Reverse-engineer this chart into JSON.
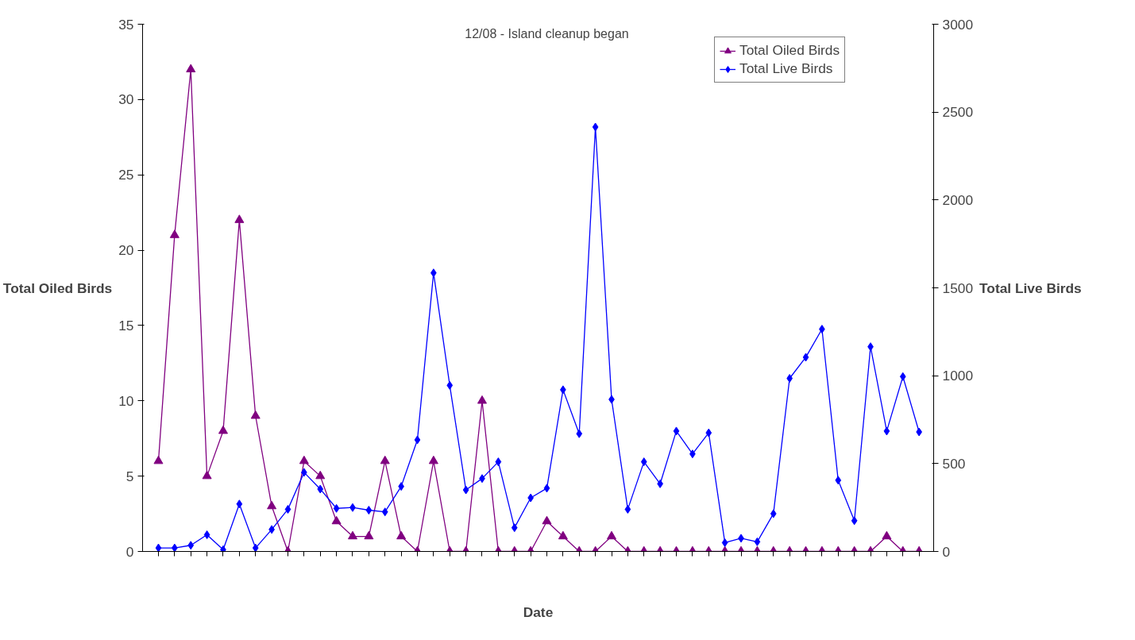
{
  "chart_data": {
    "type": "line",
    "xlabel": "Date",
    "ylabel": "Total Oiled Birds",
    "y2label": "Total Live Birds",
    "annotations": [
      "12/08 - Island cleanup began"
    ],
    "categories": [
      null,
      null,
      null,
      null,
      null,
      null,
      null,
      null,
      null,
      null,
      null,
      null,
      null,
      null,
      null,
      null,
      null,
      null,
      null,
      null,
      null,
      null,
      null,
      null,
      null,
      null,
      null,
      null,
      null,
      null,
      null,
      null,
      null,
      null,
      null,
      null,
      null,
      null,
      null,
      null,
      null,
      null,
      null,
      null,
      null,
      null,
      null,
      null
    ],
    "ylim": [
      0,
      35
    ],
    "yticks": [
      0,
      5,
      10,
      15,
      20,
      25,
      30,
      35
    ],
    "y2lim": [
      0,
      3000
    ],
    "y2ticks": [
      0,
      500,
      1000,
      1500,
      2000,
      2500,
      3000
    ],
    "legend": "top right",
    "grid": false,
    "series": [
      {
        "name": "Total Oiled Birds",
        "color": "#800080",
        "marker": "triangle",
        "values": [
          6,
          21,
          32,
          5,
          8,
          22,
          9,
          3,
          0,
          6,
          5,
          2,
          1,
          1,
          6,
          1,
          0,
          6,
          0,
          0,
          10,
          0,
          0,
          0,
          2,
          1,
          0,
          0,
          1,
          0,
          0,
          0,
          0,
          0,
          0,
          0,
          0,
          0,
          0,
          0,
          0,
          0,
          0,
          0,
          0,
          1,
          0,
          0
        ]
      },
      {
        "name": "Total Live Birds",
        "color": "#0000ff",
        "marker": "diamond",
        "axis": "y2",
        "values": [
          20,
          20,
          35,
          95,
          10,
          270,
          20,
          125,
          240,
          450,
          355,
          245,
          250,
          235,
          225,
          370,
          635,
          1585,
          945,
          350,
          415,
          510,
          135,
          305,
          360,
          920,
          670,
          2415,
          865,
          240,
          510,
          385,
          685,
          555,
          675,
          50,
          75,
          55,
          215,
          985,
          1105,
          1265,
          405,
          175,
          1165,
          685,
          995,
          680
        ]
      }
    ]
  }
}
